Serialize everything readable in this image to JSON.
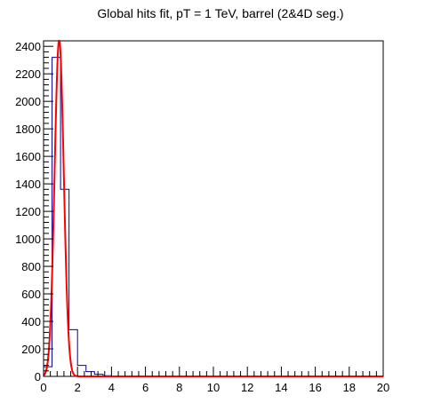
{
  "chart_data": {
    "type": "bar",
    "title": "Global hits fit, pT = 1 TeV, barrel (2&4D seg.)",
    "xlabel": "",
    "ylabel": "",
    "xlim": [
      0,
      20
    ],
    "ylim": [
      0,
      2440
    ],
    "x_ticks": [
      0,
      2,
      4,
      6,
      8,
      10,
      12,
      14,
      16,
      18,
      20
    ],
    "y_ticks": [
      0,
      200,
      400,
      600,
      800,
      1000,
      1200,
      1400,
      1600,
      1800,
      2000,
      2200,
      2400
    ],
    "grid": false,
    "legend": "none",
    "histogram": {
      "name": "",
      "color": "#000099",
      "bin_width": 0.5,
      "bin_edges_start": 0,
      "values": [
        70,
        2320,
        1360,
        340,
        80,
        35,
        15,
        5,
        3,
        2,
        2,
        1,
        1,
        1,
        1,
        1,
        0,
        0,
        0,
        0,
        0,
        0,
        0,
        0,
        0,
        0,
        0,
        0,
        0,
        0,
        0,
        0,
        0,
        0,
        0,
        0,
        0,
        0,
        0,
        0
      ]
    },
    "fit": {
      "name": "",
      "color": "#ff0000",
      "type": "gaussian",
      "amplitude": 2450,
      "mean": 0.92,
      "sigma": 0.27
    }
  }
}
